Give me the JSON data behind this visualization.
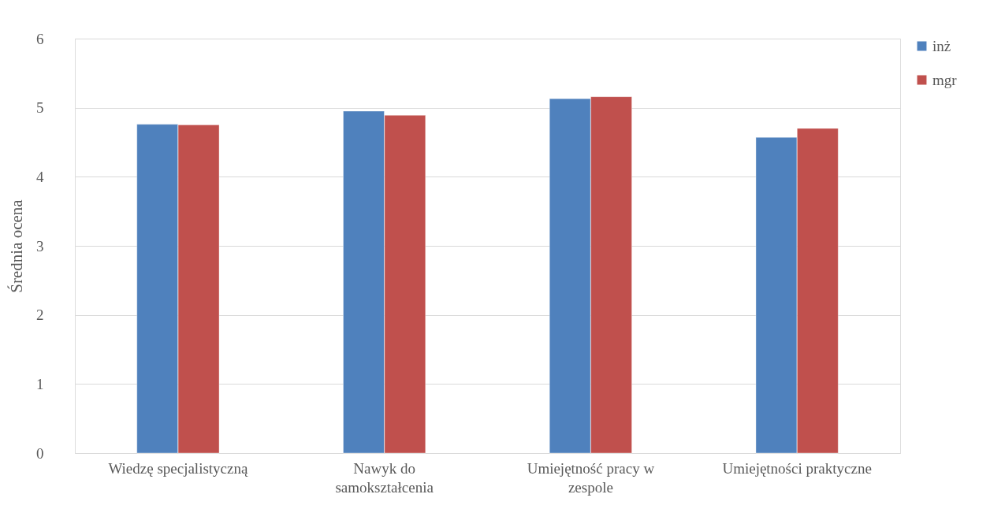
{
  "chart_data": {
    "type": "bar",
    "ylabel": "Średnia ocena",
    "categories": [
      "Wiedzę specjalistyczną",
      "Nawyk do samokształcenia",
      "Umiejętność pracy w zespole",
      "Umiejętności praktyczne"
    ],
    "series": [
      {
        "name": "inż",
        "color": "#4f81bd",
        "values": [
          4.76,
          4.95,
          5.13,
          4.57
        ]
      },
      {
        "name": "mgr",
        "color": "#c0504d",
        "values": [
          4.75,
          4.89,
          5.16,
          4.7
        ]
      }
    ],
    "ylim": [
      0,
      6
    ],
    "yticks": [
      0,
      1,
      2,
      3,
      4,
      5,
      6
    ],
    "grid": "y",
    "legend": "right"
  }
}
